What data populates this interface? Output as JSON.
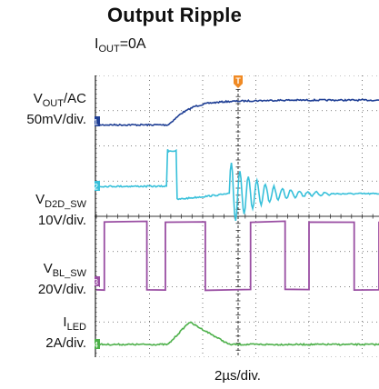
{
  "chart_data": {
    "type": "line",
    "title": "Output Ripple",
    "condition": {
      "main": "I",
      "sub": "OUT",
      "rest": "=0A"
    },
    "time_scale": "2µs/div.",
    "trigger_marker": "T",
    "grid": true,
    "colors": {
      "background": "#ffffff",
      "grid": "#555555"
    },
    "series": [
      {
        "id": "vout",
        "label_main": "V",
        "label_sub": "OUT",
        "label_rest": "/AC",
        "scale": "50mV/div.",
        "marker": "1",
        "color": "#1f3f95",
        "x": [
          0,
          1.35,
          1.45,
          1.6,
          1.85,
          2.1,
          2.4,
          2.8,
          3.2,
          3.6,
          10
        ],
        "y": [
          -0.2,
          -0.2,
          0.1,
          0.55,
          1.0,
          1.2,
          1.3,
          1.35,
          1.38,
          1.4,
          1.4
        ]
      },
      {
        "id": "vd2d",
        "label_main": "V",
        "label_sub": "D2D_SW",
        "label_rest": "",
        "scale": "10V/div.",
        "marker": "2",
        "color": "#38c0da",
        "x": [
          0,
          1.33,
          1.34,
          1.35,
          1.5,
          1.52,
          2.5,
          10
        ],
        "y": [
          0,
          0,
          1.0,
          0.95,
          0.95,
          -0.35,
          -0.2,
          -0.2
        ],
        "ringing": {
          "start": 2.5,
          "end": 4.4,
          "amplitude": 0.9,
          "period": 0.16,
          "decay": 0.55
        }
      },
      {
        "id": "vbl",
        "label_main": "V",
        "label_sub": "BL_SW",
        "label_rest": "",
        "scale": "20V/div.",
        "marker": "3",
        "color": "#9a4fa3",
        "low": -0.2,
        "high": 1.5,
        "high_intervals": [
          [
            0.15,
            0.95
          ],
          [
            1.3,
            2.05
          ],
          [
            2.9,
            3.55
          ],
          [
            4.0,
            4.85
          ],
          [
            5.4,
            6.1
          ]
        ]
      },
      {
        "id": "iled",
        "label_main": "I",
        "label_sub": "LED",
        "label_rest": "",
        "scale": "2A/div.",
        "marker": "4",
        "color": "#4db04a",
        "x": [
          0,
          1.35,
          1.75,
          2.5,
          10
        ],
        "y": [
          0,
          0,
          0.8,
          0,
          0
        ]
      }
    ]
  }
}
